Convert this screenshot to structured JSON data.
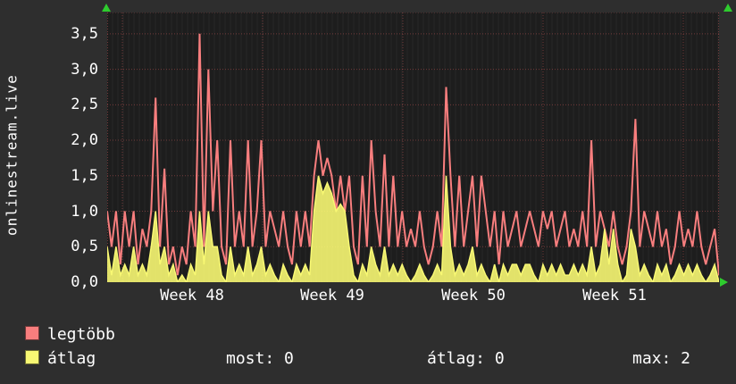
{
  "title": "onlinestream.live",
  "colors": {
    "background": "#2e2e2e",
    "plot_background": "#1d1d1d",
    "grid_major": "#d65c5c",
    "grid_minor": "#282828",
    "text": "#ffffff",
    "arrow": "#2ecc2e",
    "legtobb": "#f87e7e",
    "atlag": "#f8f873"
  },
  "legend": [
    {
      "label": "legtöbb",
      "color": "#f87e7e"
    },
    {
      "label": "átlag",
      "color": "#f8f873"
    }
  ],
  "stats": {
    "most": "most: 0",
    "atlag": "átlag: 0",
    "max": "max: 2"
  },
  "chart_data": {
    "type": "line",
    "title": "onlinestream.live",
    "ylim": [
      0,
      3.8
    ],
    "yticks": [
      "0,0",
      "0,5",
      "1,0",
      "1,5",
      "2,0",
      "2,5",
      "3,0",
      "3,5"
    ],
    "ytick_values": [
      0,
      0.5,
      1.0,
      1.5,
      2.0,
      2.5,
      3.0,
      3.5
    ],
    "x_labels": [
      "Week 48",
      "Week 49",
      "Week 50",
      "Week 51"
    ],
    "grid": true,
    "legend_position": "bottom-left",
    "series": [
      {
        "name": "legtöbb",
        "color": "#f87e7e",
        "values": [
          1.0,
          0.5,
          1.0,
          0.25,
          1.0,
          0.5,
          1.0,
          0.25,
          0.75,
          0.5,
          1.0,
          2.6,
          0.5,
          1.6,
          0.25,
          0.5,
          0.1,
          0.5,
          0.25,
          1.0,
          0.5,
          3.5,
          0.5,
          3.0,
          1.0,
          2.0,
          0.5,
          0.25,
          2.0,
          0.5,
          1.0,
          0.5,
          2.0,
          0.5,
          1.0,
          2.0,
          0.5,
          1.0,
          0.75,
          0.5,
          1.0,
          0.5,
          0.25,
          1.0,
          0.5,
          1.0,
          0.5,
          1.5,
          2.0,
          1.5,
          1.75,
          1.5,
          1.0,
          1.5,
          1.0,
          1.5,
          0.5,
          0.25,
          1.5,
          0.5,
          2.0,
          1.0,
          0.5,
          1.8,
          0.5,
          1.5,
          0.5,
          1.0,
          0.5,
          0.75,
          0.5,
          1.0,
          0.5,
          0.25,
          0.5,
          1.0,
          0.5,
          2.75,
          1.5,
          0.5,
          1.5,
          0.5,
          1.0,
          1.5,
          0.5,
          1.5,
          1.0,
          0.5,
          1.0,
          0.25,
          1.0,
          0.5,
          0.75,
          1.0,
          0.5,
          0.75,
          1.0,
          0.75,
          0.5,
          1.0,
          0.75,
          1.0,
          0.5,
          0.75,
          1.0,
          0.5,
          0.75,
          0.5,
          1.0,
          0.5,
          2.0,
          0.5,
          1.0,
          0.75,
          0.5,
          1.0,
          0.5,
          0.25,
          0.5,
          1.0,
          2.3,
          0.5,
          1.0,
          0.75,
          0.5,
          1.0,
          0.5,
          0.75,
          0.25,
          0.5,
          1.0,
          0.5,
          0.75,
          0.5,
          1.0,
          0.5,
          0.25,
          0.5,
          0.75,
          0.1
        ]
      },
      {
        "name": "átlag",
        "color": "#f8f873",
        "values": [
          0.5,
          0.1,
          0.5,
          0.1,
          0.25,
          0.1,
          0.5,
          0.1,
          0.25,
          0.1,
          0.5,
          1.0,
          0.25,
          0.5,
          0.1,
          0.25,
          0.0,
          0.1,
          0.0,
          0.25,
          0.1,
          1.0,
          0.25,
          1.0,
          0.5,
          0.5,
          0.1,
          0.0,
          0.5,
          0.1,
          0.25,
          0.1,
          0.5,
          0.1,
          0.25,
          0.5,
          0.1,
          0.25,
          0.1,
          0.0,
          0.25,
          0.1,
          0.0,
          0.25,
          0.1,
          0.25,
          0.1,
          1.0,
          1.5,
          1.25,
          1.4,
          1.25,
          1.0,
          1.1,
          1.0,
          0.5,
          0.1,
          0.0,
          0.25,
          0.1,
          0.5,
          0.25,
          0.1,
          0.5,
          0.1,
          0.25,
          0.1,
          0.25,
          0.1,
          0.0,
          0.1,
          0.25,
          0.1,
          0.0,
          0.1,
          0.25,
          0.1,
          1.5,
          0.5,
          0.1,
          0.25,
          0.1,
          0.25,
          0.5,
          0.1,
          0.25,
          0.1,
          0.0,
          0.25,
          0.0,
          0.25,
          0.1,
          0.25,
          0.25,
          0.1,
          0.25,
          0.25,
          0.1,
          0.0,
          0.25,
          0.1,
          0.25,
          0.1,
          0.25,
          0.1,
          0.1,
          0.25,
          0.1,
          0.25,
          0.1,
          0.5,
          0.1,
          0.25,
          0.75,
          0.25,
          0.75,
          0.25,
          0.0,
          0.1,
          0.75,
          0.5,
          0.1,
          0.25,
          0.1,
          0.0,
          0.25,
          0.1,
          0.25,
          0.0,
          0.1,
          0.25,
          0.1,
          0.25,
          0.1,
          0.25,
          0.1,
          0.0,
          0.1,
          0.25,
          0.0
        ]
      }
    ]
  }
}
